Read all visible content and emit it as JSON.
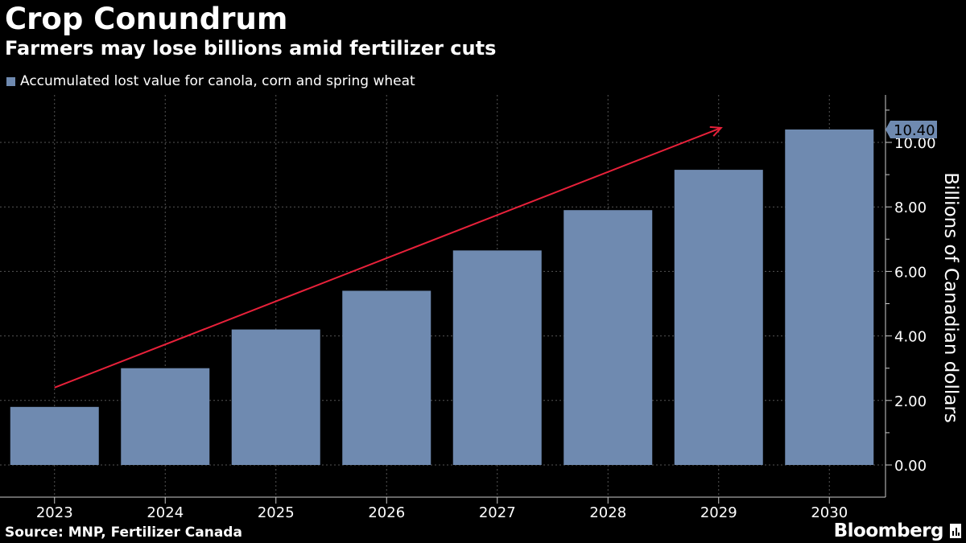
{
  "header": {
    "title": "Crop Conundrum",
    "subtitle": "Farmers may lose billions amid fertilizer cuts"
  },
  "legend": {
    "label": "Accumulated lost value for canola, corn and spring wheat"
  },
  "footer": {
    "source": "Source: MNP, Fertilizer Canada",
    "brand": "Bloomberg",
    "brand_icon": "bloomberg-chart-icon"
  },
  "colors": {
    "background": "#000000",
    "bar": "#6f8ab0",
    "trend_arrow": "#e8213a",
    "grid": "#555555",
    "text": "#ffffff"
  },
  "chart_data": {
    "type": "bar",
    "title": "Crop Conundrum",
    "subtitle": "Farmers may lose billions amid fertilizer cuts",
    "categories": [
      "2023",
      "2024",
      "2025",
      "2026",
      "2027",
      "2028",
      "2029",
      "2030"
    ],
    "series": [
      {
        "name": "Accumulated lost value for canola, corn and spring wheat",
        "values": [
          1.8,
          3.0,
          4.2,
          5.4,
          6.65,
          7.9,
          9.15,
          10.4
        ]
      }
    ],
    "xlabel": "",
    "ylabel": "Billions of Canadian dollars",
    "ylim": [
      -1,
      11.5
    ],
    "yticks": [
      0,
      2,
      4,
      6,
      8,
      10
    ],
    "ytick_labels": [
      "0.00",
      "2.00",
      "4.00",
      "6.00",
      "8.00",
      "10.00"
    ],
    "last_value_label": "10.40",
    "grid": true,
    "legend_position": "top-left",
    "axis_position": "right",
    "annotations": [
      {
        "type": "trend-arrow",
        "from": {
          "x": "2023",
          "y": 2.4
        },
        "to": {
          "x": "2029",
          "y": 10.45
        }
      }
    ]
  }
}
